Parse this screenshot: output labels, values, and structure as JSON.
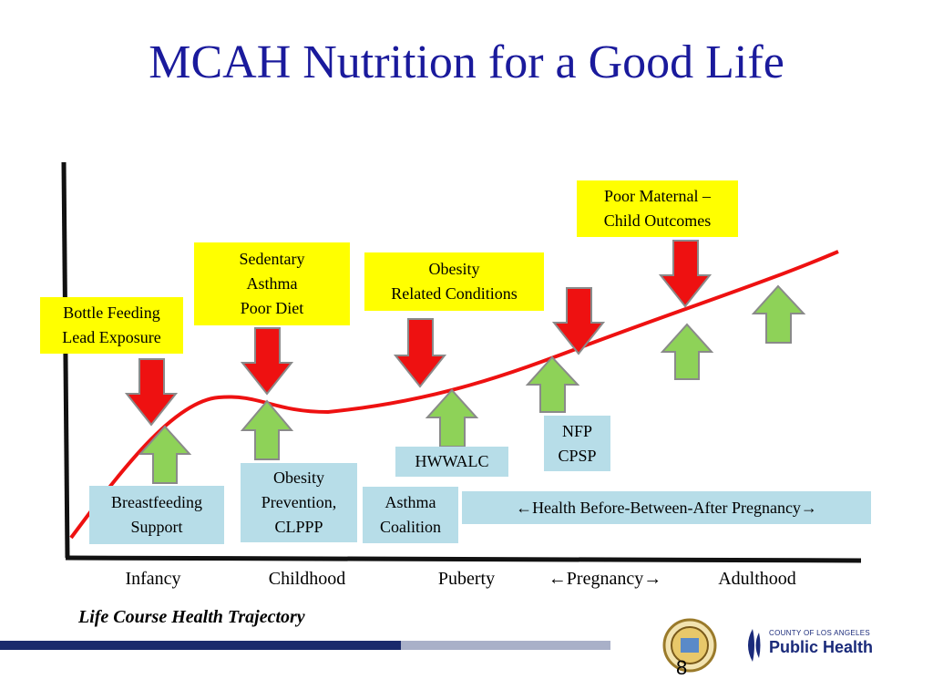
{
  "title": "MCAH Nutrition for a Good Life",
  "risk_boxes": [
    {
      "lines": [
        "Bottle Feeding",
        "Lead Exposure"
      ]
    },
    {
      "lines": [
        "Sedentary",
        "Asthma",
        "Poor Diet"
      ]
    },
    {
      "lines": [
        "Obesity",
        "Related Conditions"
      ]
    },
    {
      "lines": [
        "Poor Maternal –",
        "Child Outcomes"
      ]
    }
  ],
  "protective_boxes": [
    {
      "lines": [
        "Breastfeeding",
        "Support"
      ]
    },
    {
      "lines": [
        "Obesity",
        "Prevention,",
        "CLPPP"
      ]
    },
    {
      "lines": [
        "Asthma",
        "Coalition"
      ]
    },
    {
      "lines": [
        "HWWALC"
      ]
    },
    {
      "lines": [
        "NFP",
        "CPSP"
      ]
    },
    {
      "lines": [
        "←Health Before-Between-After Pregnancy→"
      ]
    }
  ],
  "stages": [
    "Infancy",
    "Childhood",
    "Puberty",
    "←Pregnancy→",
    "Adulthood"
  ],
  "caption": "Life Course Health Trajectory",
  "page_number": "8",
  "logo": {
    "line1": "COUNTY OF LOS ANGELES",
    "line2": "Public Health"
  },
  "colors": {
    "title": "#1a1a9c",
    "risk_box": "#ffff00",
    "protective_box": "#b7dde8",
    "risk_arrow": "#ee1111",
    "protective_arrow": "#8ed258",
    "trajectory": "#ee1111"
  }
}
